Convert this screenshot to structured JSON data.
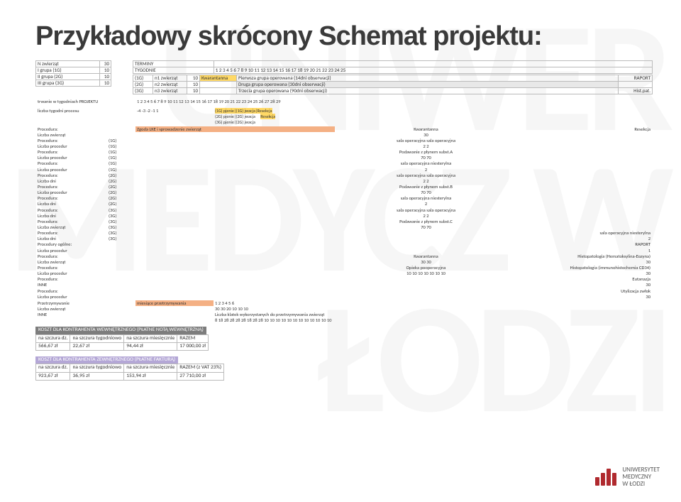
{
  "title": "Przykładowy skrócony Schemat projektu:",
  "watermark": "UNIWER MEDYCZ W ŁODZI",
  "groups": {
    "header_nz": "N zwierząt",
    "header_val": "30",
    "rows": [
      {
        "label": "I grupa (1G)",
        "val": "10"
      },
      {
        "label": "II grupa (2G)",
        "val": "10"
      },
      {
        "label": "III grupa (3G)",
        "val": "10"
      }
    ],
    "terminy_label": "TERMINY",
    "tygodnie_label": "TYGODNIE",
    "weeks_top": [
      "1",
      "2",
      "3",
      "4",
      "5",
      "6",
      "7",
      "8",
      "9",
      "10",
      "11",
      "12",
      "13",
      "14",
      "15",
      "16",
      "17",
      "18",
      "19",
      "20",
      "21",
      "22",
      "23",
      "24",
      "25"
    ],
    "sched": [
      {
        "g": "(1G)",
        "nz": "n1 zwierząt",
        "v": "10",
        "bar": "Kwarantanna",
        "desc": "Pierwsza grupa operowana (14dni obserwacji)",
        "rap": "RAPORT"
      },
      {
        "g": "(2G)",
        "nz": "n2 zwierząt",
        "v": "10",
        "bar": "",
        "desc": "Druga grupa operowana (30dni obserwacji)",
        "rap": ""
      },
      {
        "g": "(3G)",
        "nz": "n3 zwierząt",
        "v": "10",
        "bar": "",
        "desc": "Trzecia grupa operowana (90dni obserwacji)",
        "rap": "Hist.pat."
      }
    ]
  },
  "timeline": {
    "trwanie": "trwanie w tygodniach PROJEKTU",
    "weeks": [
      "1",
      "2",
      "3",
      "4",
      "5",
      "6",
      "7",
      "8",
      "9",
      "10",
      "11",
      "12",
      "13",
      "14",
      "15",
      "16",
      "17",
      "18",
      "19",
      "20",
      "21",
      "22",
      "23",
      "24",
      "25",
      "26",
      "27",
      "28",
      "29"
    ],
    "proces_label": "liczba tygodni procesu",
    "proces_vals": [
      "-4",
      "-3",
      "-2",
      "-1",
      "1"
    ],
    "proces_desc1": "(1G) pjenie|(1G) jwacja|Resekcja",
    "proces_desc2": "(2G) pjenie|(2G) jwacja",
    "proces_desc3": "(3G) pjenie|(2G) jwacja",
    "resekcja": "Resekcja"
  },
  "procedures": [
    {
      "l": "Procedura:",
      "g": "",
      "v": "Zgoda LKE i sprowadzenie zwierząt",
      "mid": "Kwarantanna",
      "tail": "Resekcja",
      "hl": "hl-o"
    },
    {
      "l": "Liczba zwierząt",
      "g": "",
      "v": "",
      "mid": "30"
    },
    {
      "l": "Procedura:",
      "g": "(1G)",
      "v": "",
      "mid": "sala operacyjna sala operacyjna"
    },
    {
      "l": "Liczba procedur",
      "g": "(1G)",
      "v": "",
      "mid": "2       2"
    },
    {
      "l": "Procedura:",
      "g": "(1G)",
      "v": "",
      "mid": "Podawanie z płynem subst.A"
    },
    {
      "l": "Liczba procedur",
      "g": "(1G)",
      "v": "",
      "mid": "70     70"
    },
    {
      "l": "Procedura:",
      "g": "(1G)",
      "v": "",
      "mid": "sala operacyjna niesterylna"
    },
    {
      "l": "Liczba procedur",
      "g": "(1G)",
      "v": "",
      "mid": "2"
    },
    {
      "l": "Procedura:",
      "g": "(2G)",
      "v": "",
      "mid": "sala operacyjna sala operacyjna"
    },
    {
      "l": "Liczba dni",
      "g": "(2G)",
      "v": "",
      "mid": "2       2"
    },
    {
      "l": "Procedura:",
      "g": "(2G)",
      "v": "",
      "mid": "Podawanie z płynem subst.B"
    },
    {
      "l": "Liczba procedur",
      "g": "(2G)",
      "v": "",
      "mid": "70     70"
    },
    {
      "l": "Procedura:",
      "g": "(2G)",
      "v": "",
      "mid": "sala operacyjna niesterylna"
    },
    {
      "l": "Liczba dni",
      "g": "(2G)",
      "v": "",
      "mid": "2"
    },
    {
      "l": "Procedura:",
      "g": "(3G)",
      "v": "",
      "mid": "sala operacyjna sala operacyjna"
    },
    {
      "l": "Liczba dni",
      "g": "(3G)",
      "v": "",
      "mid": "2       2"
    },
    {
      "l": "Procedura:",
      "g": "(3G)",
      "v": "",
      "mid": "Podawanie z płynem subst.C"
    },
    {
      "l": "Liczba zwierząt",
      "g": "(3G)",
      "v": "",
      "mid": "70     70"
    },
    {
      "l": "Procedura:",
      "g": "(3G)",
      "v": "",
      "mid": "",
      "tail": "sala operacyjna niesterylna"
    },
    {
      "l": "Liczba dni",
      "g": "(3G)",
      "v": "",
      "mid": "",
      "tail": "2"
    },
    {
      "l": "Procedury ogólne:",
      "g": "",
      "v": "",
      "tail": "RAPORT"
    },
    {
      "l": "Liczba procedur",
      "g": "",
      "v": "",
      "tail": "1"
    },
    {
      "l": "Procedura:",
      "g": "",
      "v": "",
      "mid": "Kwarantanna",
      "tail": "Histopatologia (Hematoksylina-Eozyna)",
      "hl": ""
    },
    {
      "l": "Liczba zwierząt",
      "g": "",
      "v": "",
      "mid": "30     30",
      "tail": "30"
    },
    {
      "l": "Procedura:",
      "g": "",
      "v": "",
      "mid": "Opieka pooperacyjna",
      "tail": "Histopatologia (immunohistochemia CD34)"
    },
    {
      "l": "Liczba procedur",
      "g": "",
      "v": "",
      "mid": "10   10   10   10          10    10      10",
      "tail": "30"
    },
    {
      "l": "Procedura:",
      "g": "",
      "v": "",
      "mid": "",
      "tail": "Eutanazja"
    },
    {
      "l": "INNE",
      "g": "",
      "v": "",
      "mid": "",
      "tail": "30"
    },
    {
      "l": "Procedura:",
      "g": "",
      "v": "",
      "mid": "",
      "tail": "Utylizacja zwłok"
    },
    {
      "l": "Liczba procedur",
      "g": "",
      "v": "",
      "mid": "",
      "tail": "30"
    }
  ],
  "przetrz": {
    "label": "Przetrzymywanie",
    "mies_label": "miesiące przetrzymywania",
    "months": [
      "1",
      "2",
      "3",
      "4",
      "5",
      "6"
    ],
    "lz_label": "Liczba zwierząt",
    "lz_vals": [
      "30",
      "30",
      "20",
      "10",
      "10",
      "10"
    ],
    "inne_label": "INNE",
    "inne_desc": "Liczba klatek wykorzystanych do przetrzymywania zwierząt",
    "klatki": [
      "8",
      "18",
      "28",
      "28",
      "28",
      "28",
      "18",
      "28",
      "28",
      "10",
      "10",
      "10",
      "10",
      "10",
      "10",
      "10",
      "10",
      "10",
      "10",
      "10",
      "10"
    ]
  },
  "cost1": {
    "title": "KOSZT DLA KONTRAHENTA WEWNĘTRZNEGO (PŁATNE NOTĄ WEWNĘTRZNĄ)",
    "headers": [
      "na szczura dz.",
      "na szczura tygodniowo",
      "na szczura miesięcznie",
      "RAZEM"
    ],
    "vals": [
      "566,67 zł",
      "22,67 zł",
      "94,44 zł",
      "17 000,00 zł"
    ]
  },
  "cost2": {
    "title": "KOSZT DLA KONTRAHENTA ZEWNĘTRZNEGO (PŁATNE FAKTURĄ)",
    "headers": [
      "na szczura dz.",
      "na szczura tygodniowo",
      "na szczura miesięcznie",
      "RAZEM (z VAT 23%)"
    ],
    "vals": [
      "923,67 zł",
      "36,95 zł",
      "153,94 zł",
      "27 710,00 zł"
    ]
  },
  "logo": {
    "line1": "UNIWERSYTET",
    "line2": "MEDYCZNY",
    "line3": "W ŁODZI"
  },
  "colors": {
    "header_gray": "#7d7d7d",
    "header_purple": "#9c89b8",
    "brand": "#b02a2f"
  }
}
